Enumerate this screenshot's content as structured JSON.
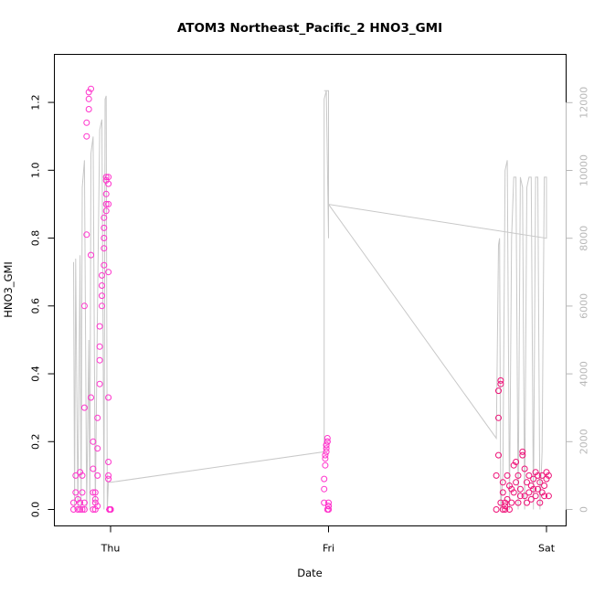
{
  "chart_data": {
    "type": "scatter",
    "title": "ATOM3 Northeast_Pacific_2 HNO3_GMI",
    "xlabel": "Date",
    "ylabel": "HNO3_GMI",
    "x_ticks": [
      "Thu",
      "Fri",
      "Sat"
    ],
    "ylim": [
      0,
      1.25
    ],
    "y_ticks": [
      "0.0",
      "0.2",
      "0.4",
      "0.6",
      "0.8",
      "1.0",
      "1.2"
    ],
    "y2lim": [
      0,
      12500
    ],
    "y2_ticks": [
      "0",
      "2000",
      "4000",
      "6000",
      "8000",
      "10000",
      "12000"
    ],
    "point_color": "#ff33cc",
    "point_color_dark": "#ee1177",
    "line_color": "#c8c8c8",
    "right_axis_color": "#b8b8b8",
    "series": [
      {
        "kind": "points",
        "axis": "left",
        "x": [
          -0.17,
          -0.17,
          -0.16,
          -0.16,
          -0.15,
          -0.15,
          -0.14,
          -0.14,
          -0.14,
          -0.13,
          -0.13,
          -0.13,
          -0.12,
          -0.12,
          -0.12,
          -0.12,
          -0.11,
          -0.11,
          -0.11,
          -0.1,
          -0.1,
          -0.1,
          -0.09,
          -0.09,
          -0.09,
          -0.08,
          -0.08,
          -0.08,
          -0.08,
          -0.07,
          -0.07,
          -0.07,
          -0.07,
          -0.06,
          -0.06,
          -0.06,
          -0.06,
          -0.05,
          -0.05,
          -0.05,
          -0.05,
          -0.04,
          -0.04,
          -0.04,
          -0.04,
          -0.03,
          -0.03,
          -0.03,
          -0.03,
          -0.03,
          -0.02,
          -0.02,
          -0.02,
          -0.02,
          -0.02,
          -0.01,
          -0.01,
          -0.01,
          -0.01,
          -0.01,
          -0.01,
          -0.01,
          -0.01,
          -0.005,
          -0.005,
          -0.005,
          -0.005,
          -0.005,
          -0.003,
          -0.003,
          -0.003,
          -0.003,
          -0.002,
          -0.002,
          -0.001,
          -0.001,
          0.0,
          0.0,
          0.0,
          0.0
        ],
        "y": [
          0.0,
          0.02,
          0.05,
          0.1,
          0.0,
          0.03,
          0.11,
          0.0,
          0.02,
          0.1,
          0.0,
          0.05,
          0.0,
          0.02,
          0.3,
          0.6,
          0.81,
          1.1,
          1.14,
          1.18,
          1.21,
          1.23,
          1.24,
          0.75,
          0.33,
          0.2,
          0.12,
          0.05,
          0.0,
          0.0,
          0.02,
          0.03,
          0.05,
          0.01,
          0.1,
          0.18,
          0.27,
          0.37,
          0.44,
          0.48,
          0.54,
          0.6,
          0.63,
          0.66,
          0.69,
          0.72,
          0.77,
          0.8,
          0.83,
          0.86,
          0.88,
          0.9,
          0.93,
          0.97,
          0.98,
          0.96,
          0.98,
          0.9,
          0.7,
          0.33,
          0.14,
          0.1,
          0.09,
          0.0,
          0.0,
          0.0,
          0.0,
          0.0,
          0.0,
          0.0,
          0.0,
          0.0,
          0.0,
          0.0,
          0.0,
          0.0,
          0.0,
          0.0,
          0.0,
          0.0
        ]
      },
      {
        "kind": "points",
        "axis": "left",
        "x": [
          0.98,
          0.98,
          0.98,
          0.985,
          0.985,
          0.985,
          0.99,
          0.99,
          0.99,
          0.99,
          0.995,
          0.995,
          0.995,
          0.995,
          1.0,
          1.0,
          1.0,
          1.0,
          1.0,
          1.0
        ],
        "y": [
          0.02,
          0.06,
          0.09,
          0.13,
          0.15,
          0.16,
          0.17,
          0.18,
          0.19,
          0.19,
          0.2,
          0.2,
          0.21,
          0.0,
          0.01,
          0.02,
          0.01,
          0.0,
          0.01,
          0.0
        ]
      },
      {
        "kind": "points",
        "axis": "left",
        "x": [
          1.77,
          1.77,
          1.78,
          1.78,
          1.78,
          1.79,
          1.79,
          1.79,
          1.8,
          1.8,
          1.8,
          1.81,
          1.81,
          1.81,
          1.82,
          1.82,
          1.83,
          1.83,
          1.84,
          1.84,
          1.85,
          1.85,
          1.86,
          1.86,
          1.87,
          1.87,
          1.88,
          1.88,
          1.89,
          1.89,
          1.9,
          1.9,
          1.91,
          1.91,
          1.92,
          1.92,
          1.93,
          1.93,
          1.94,
          1.94,
          1.95,
          1.95,
          1.96,
          1.96,
          1.97,
          1.97,
          1.98,
          1.98,
          1.99,
          1.99,
          2.0,
          2.0,
          2.01,
          2.01
        ],
        "y": [
          0.0,
          0.1,
          0.16,
          0.27,
          0.35,
          0.37,
          0.38,
          0.02,
          0.0,
          0.05,
          0.08,
          0.0,
          0.02,
          0.01,
          0.1,
          0.03,
          0.07,
          0.0,
          0.02,
          0.06,
          0.05,
          0.13,
          0.14,
          0.08,
          0.02,
          0.1,
          0.06,
          0.04,
          0.17,
          0.16,
          0.12,
          0.04,
          0.08,
          0.02,
          0.05,
          0.1,
          0.07,
          0.03,
          0.06,
          0.09,
          0.04,
          0.11,
          0.1,
          0.06,
          0.02,
          0.08,
          0.05,
          0.1,
          0.04,
          0.07,
          0.11,
          0.09,
          0.04,
          0.1
        ]
      },
      {
        "kind": "line",
        "axis": "right",
        "x": [
          -0.17,
          -0.165,
          -0.16,
          -0.15,
          -0.14,
          -0.135,
          -0.13,
          -0.12,
          -0.11,
          -0.1,
          -0.095,
          -0.09,
          -0.08,
          -0.07,
          -0.06,
          -0.05,
          -0.04,
          -0.03,
          -0.025,
          -0.02,
          -0.015,
          -0.01,
          0.0,
          0.98,
          0.98,
          0.99,
          1.0,
          1.0,
          1.77,
          1.78,
          1.785,
          1.79,
          1.8,
          1.81,
          1.82,
          1.83,
          1.84,
          1.85,
          1.86,
          1.87,
          1.88,
          1.89,
          1.9,
          1.91,
          1.92,
          1.93,
          1.94,
          1.95,
          1.96,
          1.97,
          1.98,
          1.99,
          2.0,
          2.0,
          1.0,
          1.0,
          0.98
        ],
        "y": [
          7300,
          0,
          7400,
          0,
          7500,
          0,
          9500,
          10300,
          0,
          5000,
          0,
          10500,
          11000,
          0,
          6000,
          11200,
          11500,
          0,
          12100,
          12200,
          0,
          800,
          800,
          1700,
          12100,
          12350,
          8000,
          9000,
          2100,
          7800,
          8000,
          0,
          1000,
          10000,
          10300,
          0,
          8000,
          9800,
          9800,
          0,
          9800,
          9500,
          0,
          9500,
          9800,
          9800,
          0,
          9800,
          9800,
          0,
          1700,
          9800,
          9800,
          8000,
          9000,
          12350,
          12350
        ]
      }
    ]
  }
}
